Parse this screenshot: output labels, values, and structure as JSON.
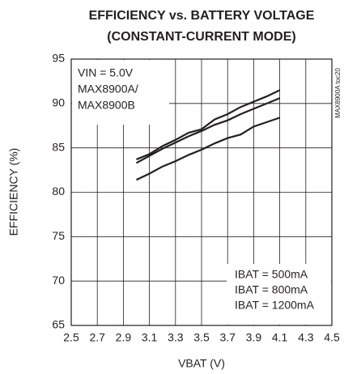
{
  "chart_data": {
    "type": "line",
    "title": [
      "EFFICIENCY vs. BATTERY VOLTAGE",
      "(CONSTANT-CURRENT MODE)"
    ],
    "xlabel": "VBAT (V)",
    "ylabel": "EFFICIENCY (%)",
    "annotations": [
      "VIN = 5.0V",
      "MAX8900A/",
      "MAX8900B"
    ],
    "side_note": "MAX8900A toc20",
    "x": [
      3.0,
      3.1,
      3.2,
      3.3,
      3.4,
      3.5,
      3.6,
      3.7,
      3.8,
      3.9,
      4.0,
      4.1
    ],
    "series": [
      {
        "name": "IBAT = 500mA",
        "color": "#231f20",
        "values": [
          83.7,
          84.3,
          85.2,
          85.9,
          86.7,
          87.1,
          88.2,
          88.8,
          89.6,
          90.2,
          90.8,
          91.5
        ]
      },
      {
        "name": "IBAT = 800mA",
        "color": "#231f20",
        "values": [
          83.3,
          84.1,
          84.9,
          85.6,
          86.3,
          86.9,
          87.6,
          88.1,
          88.8,
          89.4,
          90.0,
          90.6
        ]
      },
      {
        "name": "IBAT = 1200mA",
        "color": "#231f20",
        "values": [
          81.4,
          82.1,
          82.9,
          83.5,
          84.2,
          84.8,
          85.5,
          86.1,
          86.5,
          87.4,
          87.9,
          88.4
        ]
      }
    ],
    "xlim": [
      2.5,
      4.5
    ],
    "xticks": [
      2.5,
      2.7,
      2.9,
      3.1,
      3.3,
      3.5,
      3.7,
      3.9,
      4.1,
      4.3,
      4.5
    ],
    "ylim": [
      65,
      95
    ],
    "yticks": [
      65,
      70,
      75,
      80,
      85,
      90,
      95
    ],
    "grid": true,
    "legend": "lower right"
  }
}
